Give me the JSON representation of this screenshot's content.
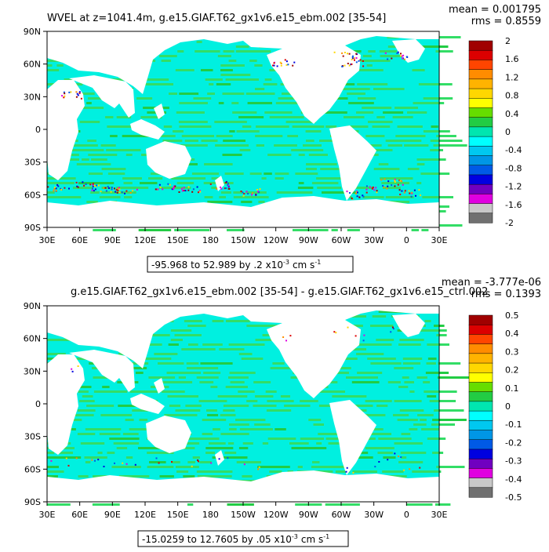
{
  "chart_data": [
    {
      "type": "heatmap",
      "title": "WVEL at z=1041.4m, g.e15.GIAF.T62_gx1v6.e15_ebm.002 [35-54]",
      "mean_label": "mean = 0.001795",
      "rms_label": "rms = 0.8559",
      "range_label": "-95.968 to 52.989 by .2 x10",
      "range_exp": "-3",
      "range_unit": "cm s",
      "range_unit_exp": "-1",
      "x_ticks": [
        "30E",
        "60E",
        "90E",
        "120E",
        "150E",
        "180",
        "150W",
        "120W",
        "90W",
        "60W",
        "30W",
        "0",
        "30E"
      ],
      "y_ticks": [
        "90N",
        "60N",
        "30N",
        "0",
        "30S",
        "60S",
        "90S"
      ],
      "colorbar_ticks": [
        "2",
        "1.6",
        "1.2",
        "0.8",
        "0.4",
        "0",
        "-0.4",
        "-0.8",
        "-1.2",
        "-1.6",
        "-2"
      ],
      "colorbar_colors": [
        "#a00000",
        "#dc0000",
        "#ff4500",
        "#ff8c00",
        "#ffb300",
        "#ffd700",
        "#ffff00",
        "#66dd00",
        "#22cc44",
        "#00e6b0",
        "#00ffff",
        "#00c8f0",
        "#0096e6",
        "#005ae6",
        "#0000e0",
        "#7000c0",
        "#e000e0",
        "#c8c8c8",
        "#707070"
      ],
      "ocean_base_color": "#00f0e0"
    },
    {
      "type": "heatmap",
      "title": "g.e15.GIAF.T62_gx1v6.e15_ebm.002 [35-54] - g.e15.GIAF.T62_gx1v6.e15_ctrl.002",
      "mean_label": "mean = -3.777e-06",
      "rms_label": "rms = 0.1393",
      "range_label": "-15.0259 to 12.7605 by .05 x10",
      "range_exp": "-3",
      "range_unit": "cm s",
      "range_unit_exp": "-1",
      "x_ticks": [
        "30E",
        "60E",
        "90E",
        "120E",
        "150E",
        "180",
        "150W",
        "120W",
        "90W",
        "60W",
        "30W",
        "0",
        "30E"
      ],
      "y_ticks": [
        "90N",
        "60N",
        "30N",
        "0",
        "30S",
        "60S",
        "90S"
      ],
      "colorbar_ticks": [
        "0.5",
        "0.4",
        "0.3",
        "0.2",
        "0.1",
        "0",
        "-0.1",
        "-0.2",
        "-0.3",
        "-0.4",
        "-0.5"
      ],
      "colorbar_colors": [
        "#a00000",
        "#dc0000",
        "#ff4500",
        "#ff8c00",
        "#ffb300",
        "#ffd700",
        "#ffff00",
        "#66dd00",
        "#22cc44",
        "#00e6b0",
        "#00ffff",
        "#00c8f0",
        "#0096e6",
        "#005ae6",
        "#0000e0",
        "#7000c0",
        "#e000e0",
        "#c8c8c8",
        "#707070"
      ],
      "ocean_base_color": "#00f0e0"
    }
  ]
}
